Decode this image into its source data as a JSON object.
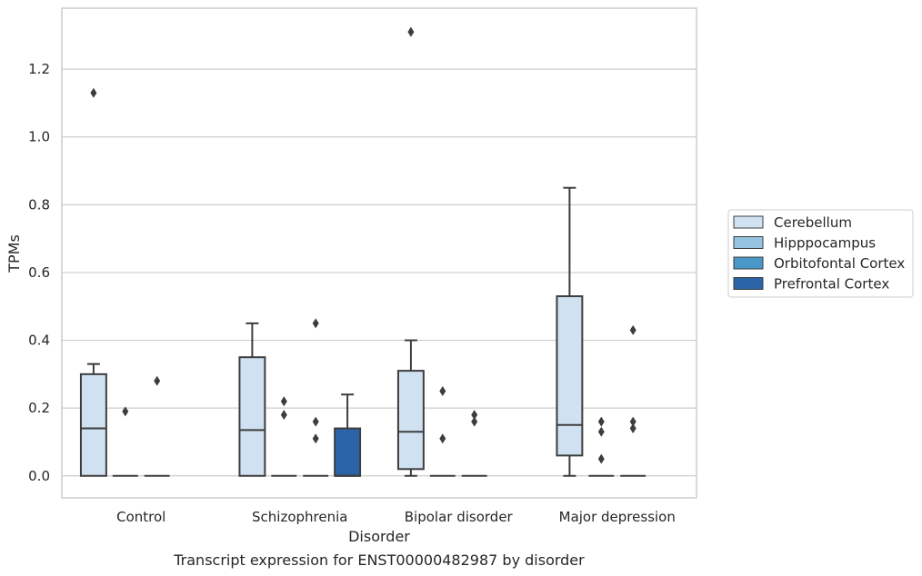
{
  "chart_data": {
    "type": "box",
    "xlabel": "Disorder",
    "ylabel": "TPMs",
    "caption": "Transcript expression for ENST00000482987 by disorder",
    "ylim": [
      -0.065,
      1.38
    ],
    "yticks": [
      "0.0",
      "0.2",
      "0.4",
      "0.6",
      "0.8",
      "1.0",
      "1.2"
    ],
    "grid": "horizontal",
    "legend_placement": "right",
    "categories": [
      "Control",
      "Schizophrenia",
      "Bipolar disorder",
      "Major depression"
    ],
    "series": [
      {
        "name": "Cerebellum",
        "color": "#d0e1f2"
      },
      {
        "name": "Hipppocampus",
        "color": "#94c4df"
      },
      {
        "name": "Orbitofontal Cortex",
        "color": "#4a98c9"
      },
      {
        "name": "Prefrontal Cortex",
        "color": "#2a64a6"
      }
    ],
    "boxes": [
      {
        "category": "Control",
        "series": "Cerebellum",
        "whislo": 0.0,
        "q1": 0.0,
        "med": 0.14,
        "q3": 0.3,
        "whishi": 0.33,
        "fliers": [
          1.13
        ]
      },
      {
        "category": "Control",
        "series": "Hipppocampus",
        "whislo": 0.0,
        "q1": 0.0,
        "med": 0.0,
        "q3": 0.0,
        "whishi": 0.0,
        "fliers": [
          0.19
        ]
      },
      {
        "category": "Control",
        "series": "Orbitofontal Cortex",
        "whislo": 0.0,
        "q1": 0.0,
        "med": 0.0,
        "q3": 0.0,
        "whishi": 0.0,
        "fliers": [
          0.28
        ]
      },
      {
        "category": "Schizophrenia",
        "series": "Cerebellum",
        "whislo": 0.0,
        "q1": 0.0,
        "med": 0.135,
        "q3": 0.35,
        "whishi": 0.45,
        "fliers": []
      },
      {
        "category": "Schizophrenia",
        "series": "Hipppocampus",
        "whislo": 0.0,
        "q1": 0.0,
        "med": 0.0,
        "q3": 0.0,
        "whishi": 0.0,
        "fliers": [
          0.22,
          0.18
        ]
      },
      {
        "category": "Schizophrenia",
        "series": "Orbitofontal Cortex",
        "whislo": 0.0,
        "q1": 0.0,
        "med": 0.0,
        "q3": 0.0,
        "whishi": 0.0,
        "fliers": [
          0.45,
          0.16,
          0.11
        ]
      },
      {
        "category": "Schizophrenia",
        "series": "Prefrontal Cortex",
        "whislo": 0.0,
        "q1": 0.0,
        "med": 0.0,
        "q3": 0.14,
        "whishi": 0.24,
        "fliers": []
      },
      {
        "category": "Bipolar disorder",
        "series": "Cerebellum",
        "whislo": 0.0,
        "q1": 0.02,
        "med": 0.13,
        "q3": 0.31,
        "whishi": 0.4,
        "fliers": [
          1.31
        ]
      },
      {
        "category": "Bipolar disorder",
        "series": "Hipppocampus",
        "whislo": 0.0,
        "q1": 0.0,
        "med": 0.0,
        "q3": 0.0,
        "whishi": 0.0,
        "fliers": [
          0.25,
          0.11
        ]
      },
      {
        "category": "Bipolar disorder",
        "series": "Orbitofontal Cortex",
        "whislo": 0.0,
        "q1": 0.0,
        "med": 0.0,
        "q3": 0.0,
        "whishi": 0.0,
        "fliers": [
          0.18,
          0.16
        ]
      },
      {
        "category": "Major depression",
        "series": "Cerebellum",
        "whislo": 0.0,
        "q1": 0.06,
        "med": 0.15,
        "q3": 0.53,
        "whishi": 0.85,
        "fliers": []
      },
      {
        "category": "Major depression",
        "series": "Hipppocampus",
        "whislo": 0.0,
        "q1": 0.0,
        "med": 0.0,
        "q3": 0.0,
        "whishi": 0.0,
        "fliers": [
          0.16,
          0.13,
          0.05
        ]
      },
      {
        "category": "Major depression",
        "series": "Orbitofontal Cortex",
        "whislo": 0.0,
        "q1": 0.0,
        "med": 0.0,
        "q3": 0.0,
        "whishi": 0.0,
        "fliers": [
          0.43,
          0.16,
          0.14
        ]
      }
    ]
  }
}
